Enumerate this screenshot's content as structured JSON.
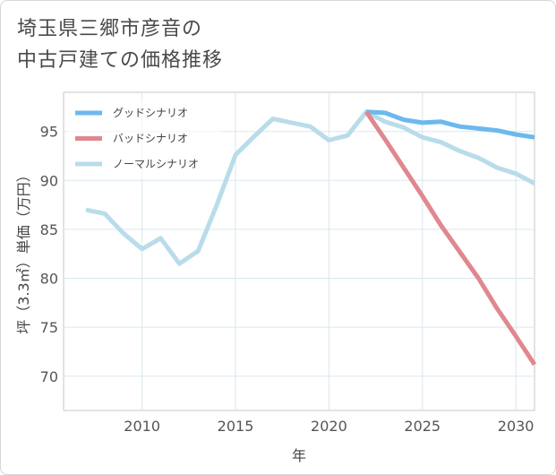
{
  "title": {
    "line1": "埼玉県三郷市彦音の",
    "line2": "中古戸建ての価格推移"
  },
  "chart_data": {
    "type": "line",
    "xlabel": "年",
    "ylabel": "坪（3.3㎡）単価（万円）",
    "xlim": [
      2005.8,
      2031
    ],
    "ylim": [
      66.5,
      99
    ],
    "xticks": [
      2010,
      2015,
      2020,
      2025,
      2030
    ],
    "yticks": [
      70,
      75,
      80,
      85,
      90,
      95
    ],
    "grid": true,
    "legend_position": "top-left",
    "series": [
      {
        "name": "グッドシナリオ",
        "color": "#6cb9ee",
        "x": [
          2022,
          2023,
          2024,
          2025,
          2026,
          2027,
          2028,
          2029,
          2030,
          2031
        ],
        "values": [
          97.0,
          96.9,
          96.2,
          95.9,
          96.0,
          95.5,
          95.3,
          95.1,
          94.7,
          94.4
        ]
      },
      {
        "name": "バッドシナリオ",
        "color": "#e0878f",
        "x": [
          2022,
          2023,
          2024,
          2025,
          2026,
          2027,
          2028,
          2029,
          2030,
          2031
        ],
        "values": [
          97.0,
          94.2,
          91.3,
          88.4,
          85.4,
          82.7,
          80.0,
          76.9,
          74.1,
          71.2
        ]
      },
      {
        "name": "ノーマルシナリオ",
        "color": "#b9dcea",
        "x": [
          2007,
          2008,
          2009,
          2010,
          2011,
          2012,
          2013,
          2014,
          2015,
          2016,
          2017,
          2018,
          2019,
          2020,
          2021,
          2022,
          2023,
          2024,
          2025,
          2026,
          2027,
          2028,
          2029,
          2030,
          2031
        ],
        "values": [
          87.0,
          86.6,
          84.6,
          83.0,
          84.1,
          81.5,
          82.8,
          87.5,
          92.6,
          94.5,
          96.3,
          95.9,
          95.5,
          94.1,
          94.6,
          97.0,
          96.0,
          95.4,
          94.4,
          93.9,
          93.0,
          92.3,
          91.3,
          90.7,
          89.7
        ]
      }
    ]
  }
}
